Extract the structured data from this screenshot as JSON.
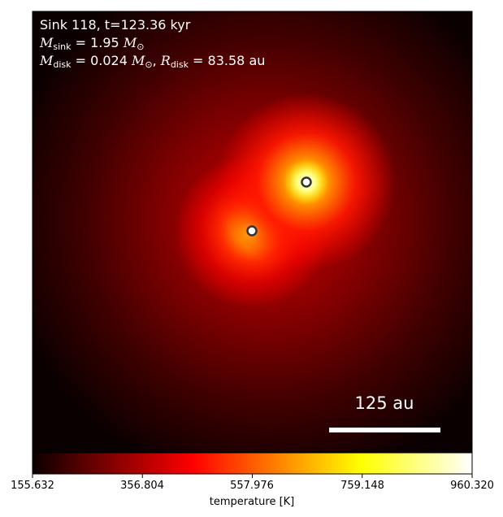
{
  "annotation": {
    "line1": "Sink 118, t=123.36 kyr",
    "m_sink_symbol": "M",
    "m_sink_sub": "sink",
    "m_sink_value": " = 1.95 ",
    "m_sink_unit_sym": "M",
    "m_sink_unit_sub": "⊙",
    "m_disk_symbol": "M",
    "m_disk_sub": "disk",
    "m_disk_value": " = 0.024 ",
    "m_disk_unit_sym": "M",
    "m_disk_unit_sub": "⊙",
    "r_disk_sep": ", ",
    "r_disk_symbol": "R",
    "r_disk_sub": "disk",
    "r_disk_value": " = 83.58 au"
  },
  "scalebar": {
    "label": "125 au",
    "color": "#ffffff"
  },
  "colorbar": {
    "colormap": "hot",
    "title": "temperature [K]",
    "ticks": [
      "155.632",
      "356.804",
      "557.976",
      "759.148",
      "960.320"
    ]
  },
  "sinks": [
    {
      "marker": "circle-icon",
      "edge_color": "#333333",
      "face_color": "#ffffff"
    },
    {
      "marker": "circle-icon",
      "edge_color": "#333333",
      "face_color": "#ffffff"
    }
  ]
}
